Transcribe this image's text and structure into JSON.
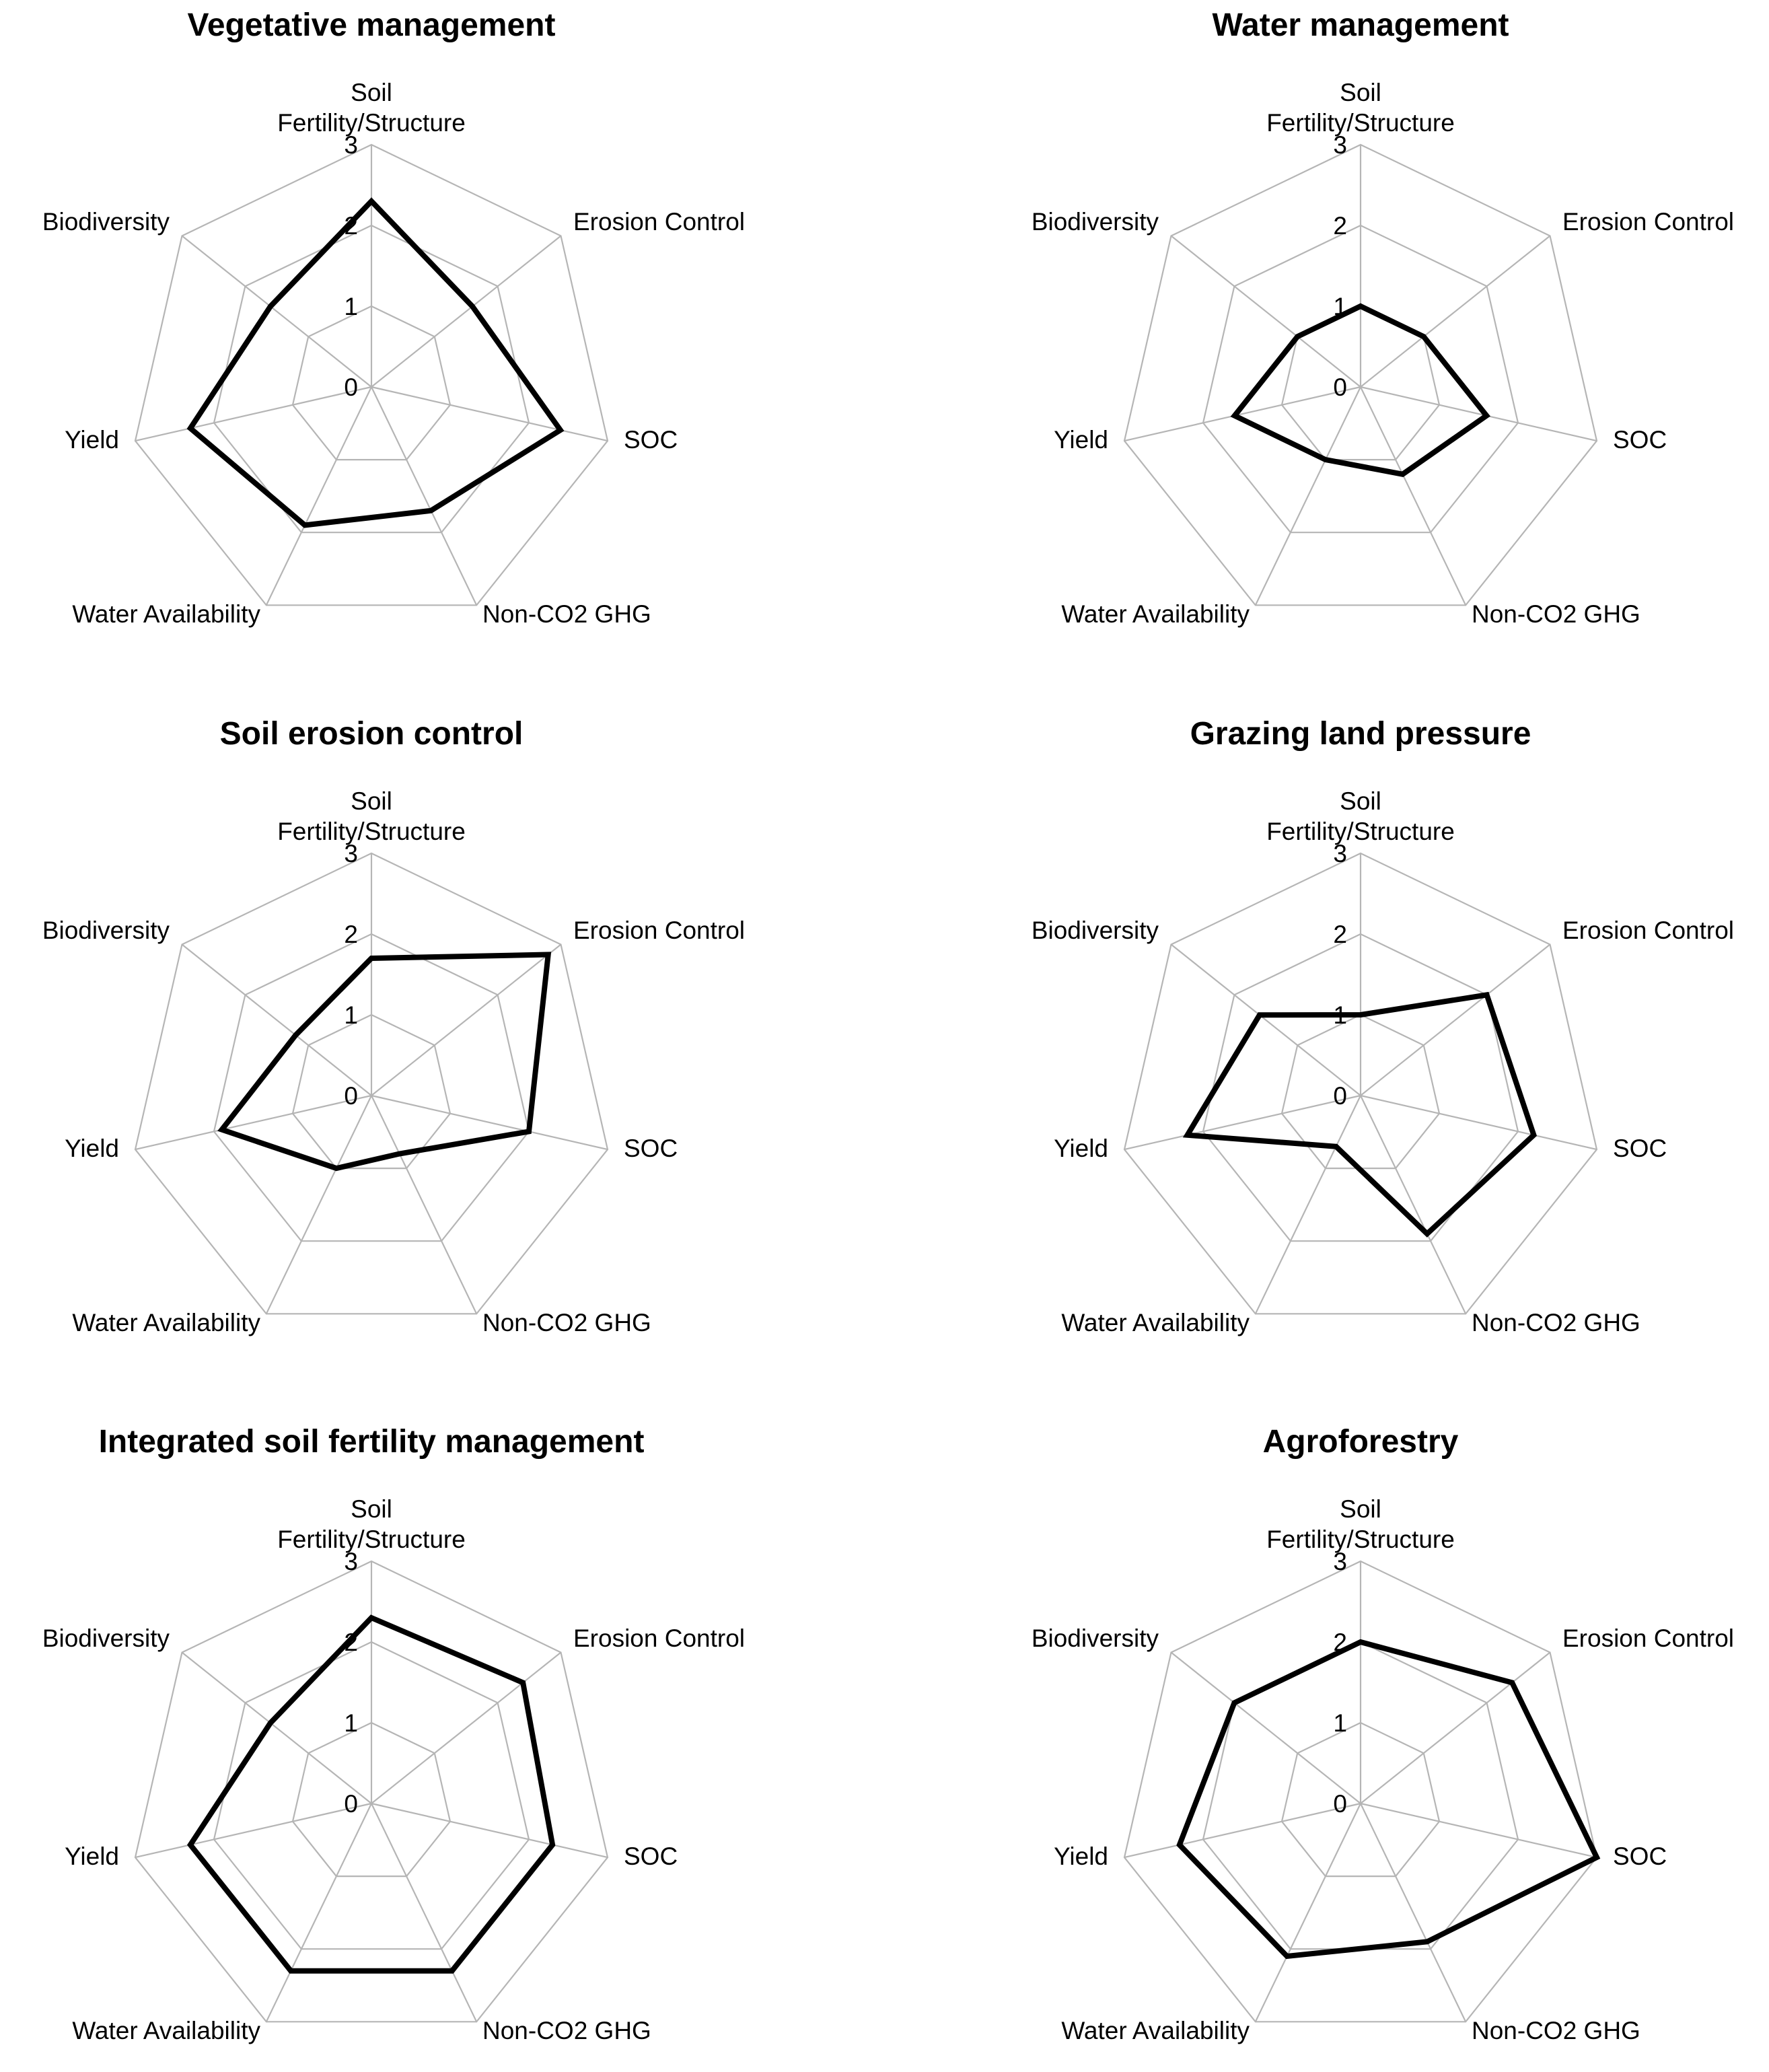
{
  "chart_data": [
    {
      "type": "radar",
      "title": "Vegetative management",
      "axes": [
        "Soil Fertility/Structure",
        "Erosion Control",
        "SOC",
        "Non-CO2 GHG",
        "Water Availability",
        "Yield",
        "Biodiversity"
      ],
      "axis_label_lines": [
        [
          "Soil",
          "Fertility/Structure"
        ],
        [
          "Erosion Control"
        ],
        [
          "SOC"
        ],
        [
          "Non-CO2 GHG"
        ],
        [
          "Water Availability"
        ],
        [
          "Yield"
        ],
        [
          "Biodiversity"
        ]
      ],
      "ticks": [
        0,
        1,
        2,
        3
      ],
      "tick_labels": [
        "0",
        "1",
        "2",
        "3"
      ],
      "rlim": [
        0,
        3
      ],
      "values": [
        2.3,
        1.6,
        2.4,
        1.7,
        1.9,
        2.3,
        1.6
      ]
    },
    {
      "type": "radar",
      "title": "Water management",
      "axes": [
        "Soil Fertility/Structure",
        "Erosion Control",
        "SOC",
        "Non-CO2 GHG",
        "Water Availability",
        "Yield",
        "Biodiversity"
      ],
      "axis_label_lines": [
        [
          "Soil",
          "Fertility/Structure"
        ],
        [
          "Erosion Control"
        ],
        [
          "SOC"
        ],
        [
          "Non-CO2 GHG"
        ],
        [
          "Water Availability"
        ],
        [
          "Yield"
        ],
        [
          "Biodiversity"
        ]
      ],
      "ticks": [
        0,
        1,
        2,
        3
      ],
      "tick_labels": [
        "0",
        "1",
        "2",
        "3"
      ],
      "rlim": [
        0,
        3
      ],
      "values": [
        1.0,
        1.0,
        1.6,
        1.2,
        1.0,
        1.6,
        1.0
      ]
    },
    {
      "type": "radar",
      "title": "Soil erosion control",
      "axes": [
        "Soil Fertility/Structure",
        "Erosion Control",
        "SOC",
        "Non-CO2 GHG",
        "Water Availability",
        "Yield",
        "Biodiversity"
      ],
      "axis_label_lines": [
        [
          "Soil",
          "Fertility/Structure"
        ],
        [
          "Erosion Control"
        ],
        [
          "SOC"
        ],
        [
          "Non-CO2 GHG"
        ],
        [
          "Water Availability"
        ],
        [
          "Yield"
        ],
        [
          "Biodiversity"
        ]
      ],
      "ticks": [
        0,
        1,
        2,
        3
      ],
      "tick_labels": [
        "0",
        "1",
        "2",
        "3"
      ],
      "rlim": [
        0,
        3
      ],
      "values": [
        1.7,
        2.8,
        2.0,
        0.8,
        1.0,
        1.9,
        1.2
      ]
    },
    {
      "type": "radar",
      "title": "Grazing land pressure",
      "axes": [
        "Soil Fertility/Structure",
        "Erosion Control",
        "SOC",
        "Non-CO2 GHG",
        "Water Availability",
        "Yield",
        "Biodiversity"
      ],
      "axis_label_lines": [
        [
          "Soil",
          "Fertility/Structure"
        ],
        [
          "Erosion Control"
        ],
        [
          "SOC"
        ],
        [
          "Non-CO2 GHG"
        ],
        [
          "Water Availability"
        ],
        [
          "Yield"
        ],
        [
          "Biodiversity"
        ]
      ],
      "ticks": [
        0,
        1,
        2,
        3
      ],
      "tick_labels": [
        "0",
        "1",
        "2",
        "3"
      ],
      "rlim": [
        0,
        3
      ],
      "values": [
        1.0,
        2.0,
        2.2,
        1.9,
        0.7,
        2.2,
        1.6
      ]
    },
    {
      "type": "radar",
      "title": "Integrated soil fertility management",
      "axes": [
        "Soil Fertility/Structure",
        "Erosion Control",
        "SOC",
        "Non-CO2 GHG",
        "Water Availability",
        "Yield",
        "Biodiversity"
      ],
      "axis_label_lines": [
        [
          "Soil",
          "Fertility/Structure"
        ],
        [
          "Erosion Control"
        ],
        [
          "SOC"
        ],
        [
          "Non-CO2 GHG"
        ],
        [
          "Water Availability"
        ],
        [
          "Yield"
        ],
        [
          "Biodiversity"
        ]
      ],
      "ticks": [
        0,
        1,
        2,
        3
      ],
      "tick_labels": [
        "0",
        "1",
        "2",
        "3"
      ],
      "rlim": [
        0,
        3
      ],
      "values": [
        2.3,
        2.4,
        2.3,
        2.3,
        2.3,
        2.3,
        1.6
      ]
    },
    {
      "type": "radar",
      "title": "Agroforestry",
      "axes": [
        "Soil Fertility/Structure",
        "Erosion Control",
        "SOC",
        "Non-CO2 GHG",
        "Water Availability",
        "Yield",
        "Biodiversity"
      ],
      "axis_label_lines": [
        [
          "Soil",
          "Fertility/Structure"
        ],
        [
          "Erosion Control"
        ],
        [
          "SOC"
        ],
        [
          "Non-CO2 GHG"
        ],
        [
          "Water Availability"
        ],
        [
          "Yield"
        ],
        [
          "Biodiversity"
        ]
      ],
      "ticks": [
        0,
        1,
        2,
        3
      ],
      "tick_labels": [
        "0",
        "1",
        "2",
        "3"
      ],
      "rlim": [
        0,
        3
      ],
      "values": [
        2.0,
        2.4,
        3.0,
        1.9,
        2.1,
        2.3,
        2.0
      ]
    }
  ]
}
